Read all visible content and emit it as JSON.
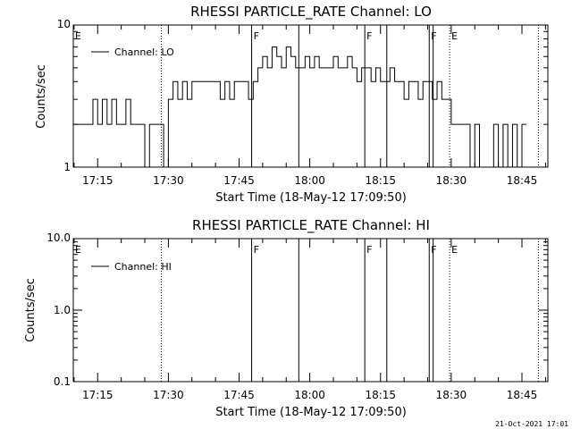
{
  "footer": {
    "date_stamp": "21-Oct-2021 17:01"
  },
  "chart_data": [
    {
      "type": "line",
      "title": "RHESSI PARTICLE_RATE Channel: LO",
      "xlabel": "Start Time (18-May-12 17:09:50)",
      "ylabel": "Counts/sec",
      "yscale": "log",
      "ylim": [
        1,
        10
      ],
      "xlim": [
        "17:09:50",
        "18:50:30"
      ],
      "y_tick_labels": [
        {
          "value": 1,
          "label": "1"
        },
        {
          "value": 10,
          "label": "10"
        }
      ],
      "x_tick_labels": [
        "17:15",
        "17:30",
        "17:45",
        "18:00",
        "18:15",
        "18:30",
        "18:45"
      ],
      "legend": {
        "position": "top-left",
        "entries": [
          "Channel: LO"
        ]
      },
      "grid": false,
      "series": [
        {
          "name": "Channel: LO",
          "x": [
            "17:10:00",
            "17:12:00",
            "17:13:00",
            "17:14:00",
            "17:15:00",
            "17:16:00",
            "17:17:00",
            "17:18:00",
            "17:19:00",
            "17:20:00",
            "17:21:00",
            "17:22:00",
            "17:23:00",
            "17:24:00",
            "17:25:00",
            "17:26:00",
            "17:27:00",
            "17:28:00",
            "17:29:00",
            "17:30:00",
            "17:31:00",
            "17:32:00",
            "17:33:00",
            "17:34:00",
            "17:35:00",
            "17:36:00",
            "17:37:00",
            "17:38:00",
            "17:39:00",
            "17:40:00",
            "17:41:00",
            "17:42:00",
            "17:43:00",
            "17:44:00",
            "17:45:00",
            "17:46:00",
            "17:47:00",
            "17:48:00",
            "17:49:00",
            "17:50:00",
            "17:51:00",
            "17:52:00",
            "17:53:00",
            "17:54:00",
            "17:55:00",
            "17:56:00",
            "17:57:00",
            "17:58:00",
            "17:59:00",
            "18:00:00",
            "18:01:00",
            "18:02:00",
            "18:03:00",
            "18:04:00",
            "18:05:00",
            "18:06:00",
            "18:07:00",
            "18:08:00",
            "18:09:00",
            "18:10:00",
            "18:11:00",
            "18:12:00",
            "18:13:00",
            "18:14:00",
            "18:15:00",
            "18:16:00",
            "18:17:00",
            "18:18:00",
            "18:19:00",
            "18:20:00",
            "18:21:00",
            "18:22:00",
            "18:23:00",
            "18:24:00",
            "18:25:00",
            "18:26:00",
            "18:27:00",
            "18:28:00",
            "18:29:00",
            "18:30:00",
            "18:31:00",
            "18:32:00",
            "18:33:00",
            "18:34:00",
            "18:35:00",
            "18:36:00",
            "18:37:00",
            "18:38:00",
            "18:39:00",
            "18:40:00",
            "18:41:00",
            "18:42:00",
            "18:43:00",
            "18:44:00",
            "18:45:00"
          ],
          "y": [
            2,
            2,
            2,
            3,
            2,
            3,
            2,
            3,
            2,
            2,
            3,
            2,
            2,
            2,
            1,
            2,
            2,
            2,
            1,
            3,
            4,
            3,
            4,
            3,
            4,
            4,
            4,
            4,
            4,
            4,
            3,
            4,
            3,
            4,
            4,
            4,
            3,
            4,
            5,
            6,
            5,
            7,
            6,
            5,
            7,
            6,
            5,
            5,
            6,
            5,
            6,
            5,
            5,
            5,
            6,
            5,
            5,
            6,
            5,
            4,
            5,
            5,
            4,
            5,
            4,
            4,
            5,
            4,
            4,
            3,
            4,
            4,
            3,
            4,
            4,
            3,
            4,
            3,
            3,
            2,
            2,
            2,
            2,
            1,
            2,
            1,
            1,
            1,
            2,
            1,
            2,
            1,
            2,
            1,
            2
          ]
        }
      ],
      "vertical_markers": [
        {
          "time": "17:09:50",
          "style": "dotted",
          "label": "E"
        },
        {
          "time": "17:28:30",
          "style": "dotted",
          "label": ""
        },
        {
          "time": "17:47:40",
          "style": "solid",
          "label": "F"
        },
        {
          "time": "17:57:40",
          "style": "solid",
          "label": ""
        },
        {
          "time": "18:11:40",
          "style": "solid",
          "label": "F"
        },
        {
          "time": "18:16:20",
          "style": "solid",
          "label": ""
        },
        {
          "time": "18:25:20",
          "style": "solid",
          "label": "F"
        },
        {
          "time": "18:26:10",
          "style": "solid",
          "label": ""
        },
        {
          "time": "18:29:40",
          "style": "dotted",
          "label": "E"
        },
        {
          "time": "18:48:30",
          "style": "dotted",
          "label": ""
        }
      ]
    },
    {
      "type": "line",
      "title": "RHESSI PARTICLE_RATE Channel: HI",
      "xlabel": "Start Time (18-May-12 17:09:50)",
      "ylabel": "Counts/sec",
      "yscale": "log",
      "ylim": [
        0.1,
        10.0
      ],
      "xlim": [
        "17:09:50",
        "18:50:30"
      ],
      "y_tick_labels": [
        {
          "value": 0.1,
          "label": "0.1"
        },
        {
          "value": 1.0,
          "label": "1.0"
        },
        {
          "value": 10.0,
          "label": "10.0"
        }
      ],
      "x_tick_labels": [
        "17:15",
        "17:30",
        "17:45",
        "18:00",
        "18:15",
        "18:30",
        "18:45"
      ],
      "legend": {
        "position": "top-left",
        "entries": [
          "Channel: HI"
        ]
      },
      "grid": false,
      "series": [
        {
          "name": "Channel: HI",
          "x": [],
          "y": []
        }
      ],
      "vertical_markers": [
        {
          "time": "17:09:50",
          "style": "dotted",
          "label": "E"
        },
        {
          "time": "17:28:30",
          "style": "dotted",
          "label": ""
        },
        {
          "time": "17:47:40",
          "style": "solid",
          "label": "F"
        },
        {
          "time": "17:57:40",
          "style": "solid",
          "label": ""
        },
        {
          "time": "18:11:40",
          "style": "solid",
          "label": "F"
        },
        {
          "time": "18:16:20",
          "style": "solid",
          "label": ""
        },
        {
          "time": "18:25:20",
          "style": "solid",
          "label": "F"
        },
        {
          "time": "18:26:10",
          "style": "solid",
          "label": ""
        },
        {
          "time": "18:29:40",
          "style": "dotted",
          "label": "E"
        },
        {
          "time": "18:48:30",
          "style": "dotted",
          "label": ""
        }
      ]
    }
  ]
}
